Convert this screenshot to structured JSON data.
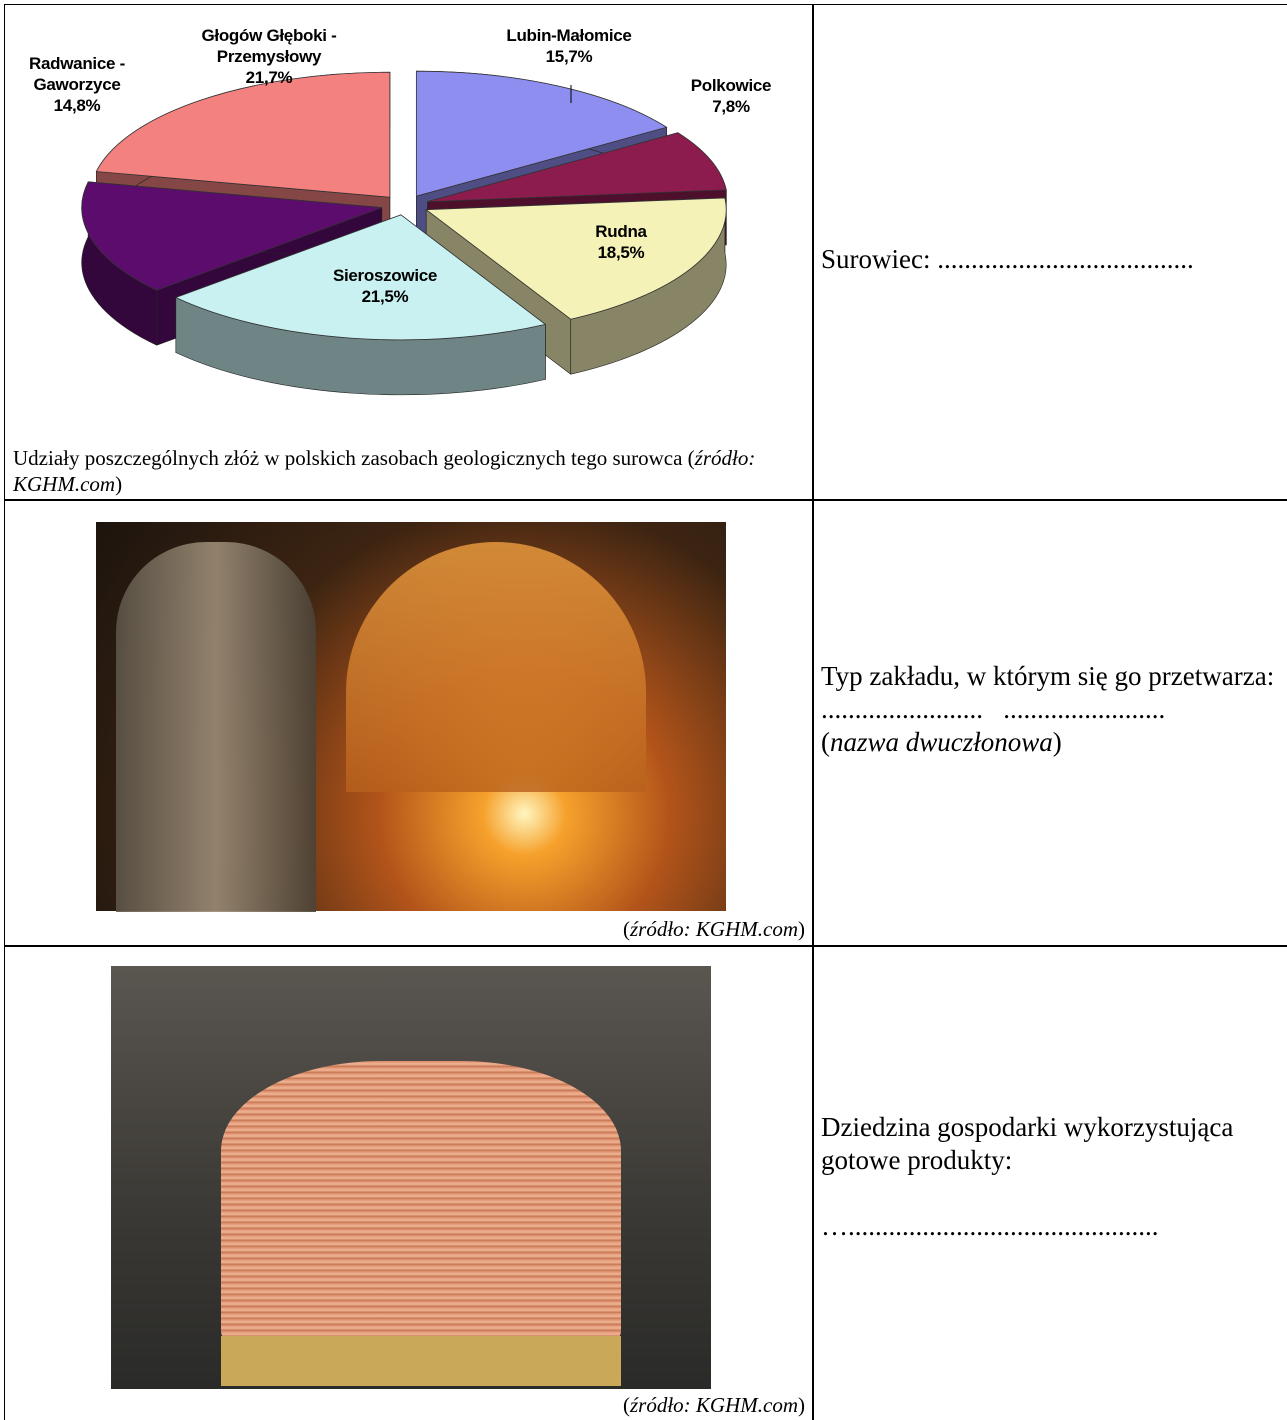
{
  "chart_data": {
    "type": "pie",
    "categories": [
      "Lubin-Małomice",
      "Polkowice",
      "Rudna",
      "Sieroszowice",
      "Radwanice - Gaworzyce",
      "Głogów Głęboki - Przemysłowy"
    ],
    "values": [
      15.7,
      7.8,
      18.5,
      21.5,
      14.8,
      21.7
    ],
    "value_labels": [
      "15,7%",
      "7,8%",
      "18,5%",
      "21,5%",
      "14,8%",
      "21,7%"
    ],
    "colors": [
      "#8e8ef0",
      "#8c1c4e",
      "#f5f2b8",
      "#c9f1f1",
      "#5c0c6c",
      "#f2817f"
    ]
  },
  "table": {
    "rows": [
      {
        "caption": {
          "text": "Udziały poszczególnych złóż w polskich zasobach geologicznych tego surowca (",
          "italic": "źródło: KGHM.com",
          "suffix": ")"
        },
        "answer": {
          "text": "Surowiec: ......................................"
        }
      },
      {
        "caption": {
          "prefix": "(",
          "italic": "źródło: KGHM.com",
          "suffix": ")"
        },
        "answer": {
          "text": "Typ zakładu, w którym się go przetwarza:",
          "dots": "........................   ........................",
          "note": {
            "prefix": "(",
            "italic": "nazwa dwuczłonowa",
            "suffix": ")"
          }
        }
      },
      {
        "caption": {
          "prefix": "(",
          "italic": "źródło: KGHM.com",
          "suffix": ")"
        },
        "answer": {
          "text": "Dziedzina gospodarki wykorzystująca gotowe produkty:",
          "dots": "….............................................."
        }
      }
    ]
  }
}
